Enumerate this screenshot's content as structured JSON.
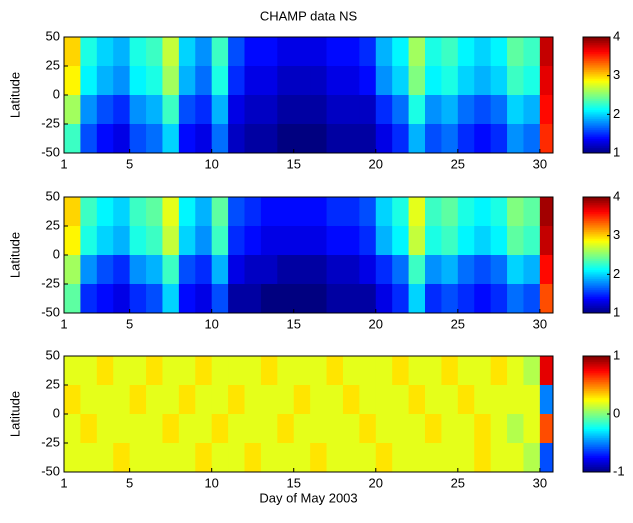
{
  "chart_data": [
    {
      "type": "heatmap",
      "title": "CHAMP data NS",
      "y_label": "Latitude",
      "x": [
        1.5,
        2.5,
        3.5,
        4.5,
        5.5,
        6.5,
        7.5,
        8.5,
        9.5,
        10.5,
        11.5,
        12.5,
        13.5,
        14.5,
        15.5,
        16.5,
        17.5,
        18.5,
        19.5,
        20.5,
        21.5,
        22.5,
        23.5,
        24.5,
        25.5,
        26.5,
        27.5,
        28.5,
        29.5,
        30.5
      ],
      "y": [
        37.5,
        12.5,
        -12.5,
        -37.5
      ],
      "z": [
        [
          3.0,
          2.2,
          2.0,
          1.9,
          2.2,
          2.3,
          2.7,
          2.0,
          1.8,
          2.3,
          1.6,
          1.4,
          1.4,
          1.3,
          1.3,
          1.3,
          1.4,
          1.4,
          1.5,
          1.9,
          2.1,
          2.6,
          2.2,
          2.3,
          2.1,
          2.0,
          2.1,
          2.4,
          2.3,
          3.8
        ],
        [
          2.9,
          2.1,
          1.9,
          1.8,
          2.1,
          2.2,
          2.6,
          1.9,
          1.7,
          2.2,
          1.5,
          1.3,
          1.3,
          1.2,
          1.2,
          1.2,
          1.3,
          1.3,
          1.4,
          1.8,
          2.0,
          2.5,
          2.1,
          2.2,
          2.0,
          1.9,
          2.0,
          2.3,
          2.2,
          3.7
        ],
        [
          2.6,
          1.8,
          1.6,
          1.5,
          1.8,
          1.9,
          2.3,
          1.6,
          1.5,
          1.9,
          1.3,
          1.2,
          1.2,
          1.1,
          1.1,
          1.1,
          1.2,
          1.2,
          1.2,
          1.5,
          1.7,
          2.2,
          1.8,
          1.9,
          1.7,
          1.6,
          1.7,
          2.0,
          1.9,
          3.6
        ],
        [
          2.3,
          1.6,
          1.4,
          1.3,
          1.6,
          1.7,
          2.0,
          1.4,
          1.3,
          1.7,
          1.2,
          1.1,
          1.1,
          1.0,
          1.0,
          1.0,
          1.1,
          1.1,
          1.1,
          1.3,
          1.5,
          1.9,
          1.6,
          1.7,
          1.5,
          1.4,
          1.5,
          1.8,
          1.7,
          3.5
        ]
      ],
      "xlim": [
        1,
        30.8
      ],
      "xticks": [
        1,
        5,
        10,
        15,
        20,
        25,
        30
      ],
      "ylim": [
        -50,
        50
      ],
      "yticks": [
        -50,
        -25,
        0,
        25,
        50
      ],
      "clim": [
        1,
        4
      ],
      "cticks": [
        1,
        2,
        3,
        4
      ],
      "colormap": "jet"
    },
    {
      "type": "heatmap",
      "y_label": "Latitude",
      "x": [
        1.5,
        2.5,
        3.5,
        4.5,
        5.5,
        6.5,
        7.5,
        8.5,
        9.5,
        10.5,
        11.5,
        12.5,
        13.5,
        14.5,
        15.5,
        16.5,
        17.5,
        18.5,
        19.5,
        20.5,
        21.5,
        22.5,
        23.5,
        24.5,
        25.5,
        26.5,
        27.5,
        28.5,
        29.5,
        30.5
      ],
      "y": [
        37.5,
        12.5,
        -12.5,
        -37.5
      ],
      "z": [
        [
          3.0,
          2.3,
          2.1,
          2.0,
          2.3,
          2.4,
          2.8,
          2.1,
          1.9,
          2.4,
          1.6,
          1.5,
          1.4,
          1.4,
          1.4,
          1.4,
          1.5,
          1.5,
          1.6,
          2.0,
          2.2,
          2.8,
          2.3,
          2.4,
          2.2,
          2.1,
          2.2,
          2.5,
          2.4,
          3.9
        ],
        [
          2.9,
          2.2,
          2.0,
          1.9,
          2.2,
          2.3,
          2.7,
          2.0,
          1.8,
          2.3,
          1.5,
          1.4,
          1.3,
          1.3,
          1.3,
          1.3,
          1.4,
          1.4,
          1.5,
          1.9,
          2.1,
          2.7,
          2.2,
          2.3,
          2.1,
          2.0,
          2.1,
          2.4,
          2.3,
          3.8
        ],
        [
          2.6,
          1.8,
          1.6,
          1.5,
          1.8,
          1.9,
          2.3,
          1.6,
          1.5,
          1.9,
          1.3,
          1.2,
          1.2,
          1.1,
          1.1,
          1.1,
          1.2,
          1.2,
          1.3,
          1.5,
          1.7,
          2.3,
          1.8,
          1.9,
          1.7,
          1.6,
          1.7,
          2.0,
          1.9,
          3.6
        ],
        [
          2.4,
          1.5,
          1.4,
          1.3,
          1.5,
          1.6,
          2.0,
          1.4,
          1.3,
          1.6,
          1.1,
          1.1,
          1.0,
          1.0,
          1.0,
          1.0,
          1.1,
          1.1,
          1.1,
          1.3,
          1.5,
          2.0,
          1.5,
          1.6,
          1.5,
          1.4,
          1.5,
          1.7,
          1.6,
          3.4
        ]
      ],
      "xlim": [
        1,
        30.8
      ],
      "xticks": [
        1,
        5,
        10,
        15,
        20,
        25,
        30
      ],
      "ylim": [
        -50,
        50
      ],
      "yticks": [
        -50,
        -25,
        0,
        25,
        50
      ],
      "clim": [
        1,
        4
      ],
      "cticks": [
        1,
        2,
        3,
        4
      ],
      "colormap": "jet"
    },
    {
      "type": "heatmap",
      "y_label": "Latitude",
      "x_label": "Day of May 2003",
      "x": [
        1.5,
        2.5,
        3.5,
        4.5,
        5.5,
        6.5,
        7.5,
        8.5,
        9.5,
        10.5,
        11.5,
        12.5,
        13.5,
        14.5,
        15.5,
        16.5,
        17.5,
        18.5,
        19.5,
        20.5,
        21.5,
        22.5,
        23.5,
        24.5,
        25.5,
        26.5,
        27.5,
        28.5,
        29.5,
        30.5
      ],
      "y": [
        37.5,
        12.5,
        -12.5,
        -37.5
      ],
      "z": [
        [
          0.2,
          0.2,
          0.3,
          0.2,
          0.2,
          0.3,
          0.2,
          0.2,
          0.3,
          0.2,
          0.2,
          0.2,
          0.3,
          0.2,
          0.2,
          0.2,
          0.3,
          0.2,
          0.2,
          0.2,
          0.3,
          0.2,
          0.2,
          0.3,
          0.2,
          0.2,
          0.3,
          0.2,
          0.1,
          0.8
        ],
        [
          0.3,
          0.2,
          0.2,
          0.2,
          0.3,
          0.2,
          0.2,
          0.3,
          0.2,
          0.2,
          0.3,
          0.2,
          0.2,
          0.2,
          0.3,
          0.2,
          0.2,
          0.3,
          0.2,
          0.2,
          0.2,
          0.3,
          0.2,
          0.2,
          0.3,
          0.2,
          0.2,
          0.2,
          0.2,
          -0.5
        ],
        [
          0.2,
          0.3,
          0.2,
          0.2,
          0.2,
          0.2,
          0.3,
          0.2,
          0.2,
          0.3,
          0.2,
          0.2,
          0.2,
          0.3,
          0.2,
          0.2,
          0.2,
          0.2,
          0.3,
          0.2,
          0.2,
          0.2,
          0.3,
          0.2,
          0.2,
          0.3,
          0.2,
          0.1,
          0.2,
          0.6
        ],
        [
          0.2,
          0.2,
          0.2,
          0.3,
          0.2,
          0.2,
          0.2,
          0.2,
          0.3,
          0.2,
          0.2,
          0.3,
          0.2,
          0.2,
          0.2,
          0.3,
          0.2,
          0.2,
          0.2,
          0.3,
          0.2,
          0.2,
          0.2,
          0.2,
          0.2,
          0.3,
          0.2,
          0.2,
          0.1,
          -0.6
        ]
      ],
      "xlim": [
        1,
        30.8
      ],
      "xticks": [
        1,
        5,
        10,
        15,
        20,
        25,
        30
      ],
      "ylim": [
        -50,
        50
      ],
      "yticks": [
        -50,
        -25,
        0,
        25,
        50
      ],
      "clim": [
        -1,
        1
      ],
      "cticks": [
        -1,
        0,
        1
      ],
      "colormap": "jet"
    }
  ]
}
